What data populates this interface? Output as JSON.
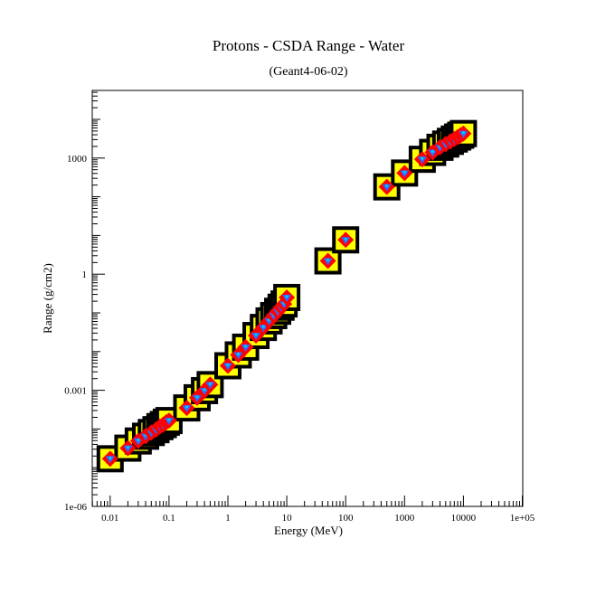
{
  "chart_data": {
    "type": "scatter",
    "title": "Protons - CSDA Range - Water",
    "subtitle": "(Geant4-06-02)",
    "xlabel": "Energy (MeV)",
    "ylabel": "Range (g/cm2)",
    "x_scale": "log",
    "y_scale": "log",
    "xlim": [
      0.005,
      100000
    ],
    "ylim": [
      1e-06,
      30000
    ],
    "x_ticks": [
      {
        "value": 0.01,
        "label": "0.01"
      },
      {
        "value": 0.1,
        "label": "0.1"
      },
      {
        "value": 1,
        "label": "1"
      },
      {
        "value": 10,
        "label": "10"
      },
      {
        "value": 100,
        "label": "100"
      },
      {
        "value": 1000,
        "label": "1000"
      },
      {
        "value": 10000,
        "label": "10000"
      },
      {
        "value": 100000,
        "label": "1e+05"
      }
    ],
    "y_ticks": [
      {
        "value": 1e-06,
        "label": "1e-06"
      },
      {
        "value": 0.001,
        "label": "0.001"
      },
      {
        "value": 1,
        "label": "1"
      },
      {
        "value": 1000,
        "label": "1000"
      }
    ],
    "grid": false,
    "legend": "none",
    "colors": {
      "error_box_outer": "#000000",
      "error_box_inner": "#ffff00",
      "marker_outer": "#ff0000",
      "marker_inner": "#3366ff",
      "marker_center": "#00ccff"
    },
    "series": [
      {
        "x": [
          0.01,
          0.02,
          0.03,
          0.04,
          0.05,
          0.06,
          0.07,
          0.08,
          0.09,
          0.1,
          0.2,
          0.3,
          0.4,
          0.5,
          1,
          1.5,
          2,
          3,
          4,
          5,
          6,
          7,
          8,
          9,
          10,
          50,
          100,
          500,
          1000,
          2000,
          3000,
          4000,
          5000,
          6000,
          7000,
          8000,
          9000,
          10000
        ],
        "y": [
          1.7e-05,
          3.2e-05,
          4.9e-05,
          6.5e-05,
          8.1e-05,
          9.6e-05,
          0.000115,
          0.00013,
          0.00015,
          0.000165,
          0.00035,
          0.00064,
          0.00098,
          0.0014,
          0.0043,
          0.0082,
          0.013,
          0.026,
          0.042,
          0.062,
          0.085,
          0.11,
          0.14,
          0.17,
          0.25,
          2.2,
          7.7,
          180,
          410,
          930,
          1400,
          1900,
          2300,
          2700,
          3100,
          3500,
          3900,
          4300
        ]
      }
    ]
  }
}
